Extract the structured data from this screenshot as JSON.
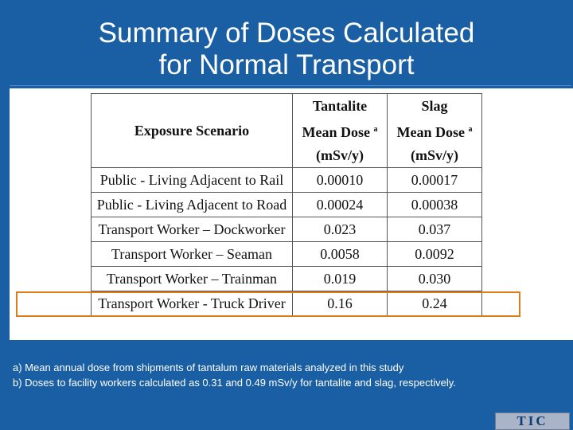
{
  "title": {
    "line1": "Summary of Doses Calculated",
    "line2": "for Normal Transport"
  },
  "table": {
    "header": {
      "scenario": "Exposure Scenario",
      "tantalite": [
        "Tantalite",
        "Mean Dose",
        "(mSv/y)"
      ],
      "slag": [
        "Slag",
        "Mean Dose",
        "(mSv/y)"
      ],
      "superscript": "a"
    },
    "rows": [
      {
        "scenario": "Public - Living Adjacent to Rail",
        "tantalite": "0.00010",
        "slag": "0.00017"
      },
      {
        "scenario": "Public - Living Adjacent to Road",
        "tantalite": "0.00024",
        "slag": "0.00038"
      },
      {
        "scenario": "Transport Worker – Dockworker",
        "tantalite": "0.023",
        "slag": "0.037"
      },
      {
        "scenario": "Transport Worker – Seaman",
        "tantalite": "0.0058",
        "slag": "0.0092"
      },
      {
        "scenario": "Transport Worker – Trainman",
        "tantalite": "0.019",
        "slag": "0.030"
      },
      {
        "scenario": "Transport Worker - Truck Driver",
        "tantalite": "0.16",
        "slag": "0.24"
      }
    ]
  },
  "notes": {
    "a": "a) Mean annual dose from shipments of tantalum raw materials analyzed in this study",
    "b": "b) Doses to facility workers calculated as 0.31 and 0.49 mSv/y for tantalite and slag, respectively."
  },
  "logo": {
    "text": "TIC"
  },
  "colors": {
    "background": "#1a5fa3",
    "highlight": "#e07b1a"
  }
}
